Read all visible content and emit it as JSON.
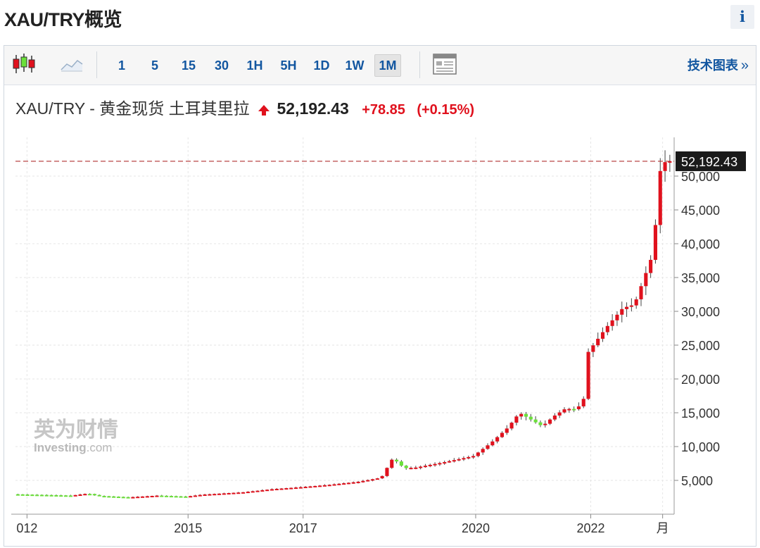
{
  "page": {
    "title": "XAU/TRY概览",
    "info_icon": "i"
  },
  "toolbar": {
    "candles_icon": "candlestick-chart-icon",
    "area_icon": "area-chart-icon",
    "timeframes": [
      "1",
      "5",
      "15",
      "30",
      "1H",
      "5H",
      "1D",
      "1W",
      "1M"
    ],
    "active_timeframe": "1M",
    "layout_icon": "chart-layout-icon",
    "tech_link": "技术图表",
    "tech_arrow": "»"
  },
  "quote": {
    "name": "XAU/TRY - 黄金现货 土耳其里拉",
    "price": "52,192.43",
    "change": "+78.85",
    "change_pct": "(+0.15%)",
    "direction": "up"
  },
  "watermark": {
    "cn": "英为财情",
    "en": "Investing",
    "en_suffix": ".com"
  },
  "colors": {
    "up": "#e0111d",
    "down": "#6be03a",
    "link": "#1256a0",
    "price_line": "#b03030"
  },
  "chart_data": {
    "type": "candlestick",
    "interval": "1M",
    "last_price": 52192.43,
    "last_price_label": "52,192.43",
    "ylim": [
      0,
      56000
    ],
    "y_ticks": [
      5000,
      10000,
      15000,
      20000,
      25000,
      30000,
      35000,
      40000,
      45000,
      50000
    ],
    "y_tick_labels": [
      "5,000",
      "10,000",
      "15,000",
      "20,000",
      "25,000",
      "30,000",
      "35,000",
      "40,000",
      "45,000",
      "50,000"
    ],
    "x_ticks": [
      {
        "t": 2012.2,
        "label": "012"
      },
      {
        "t": 2015.0,
        "label": "2015"
      },
      {
        "t": 2017.0,
        "label": "2017"
      },
      {
        "t": 2020.0,
        "label": "2020"
      },
      {
        "t": 2022.0,
        "label": "2022"
      },
      {
        "t": 2023.25,
        "label": "月"
      }
    ],
    "xlim": [
      2012.0,
      2023.45
    ],
    "anchors": [
      [
        2012.0,
        2950
      ],
      [
        2012.5,
        2850
      ],
      [
        2013.0,
        2750
      ],
      [
        2013.3,
        3050
      ],
      [
        2013.5,
        2700
      ],
      [
        2014.0,
        2500
      ],
      [
        2014.5,
        2750
      ],
      [
        2015.0,
        2600
      ],
      [
        2015.3,
        2900
      ],
      [
        2015.6,
        3050
      ],
      [
        2016.0,
        3250
      ],
      [
        2016.5,
        3700
      ],
      [
        2017.0,
        4000
      ],
      [
        2017.5,
        4350
      ],
      [
        2018.0,
        4800
      ],
      [
        2018.4,
        5400
      ],
      [
        2018.6,
        8300
      ],
      [
        2018.8,
        6800
      ],
      [
        2019.0,
        6900
      ],
      [
        2019.5,
        7700
      ],
      [
        2020.0,
        8600
      ],
      [
        2020.3,
        10500
      ],
      [
        2020.6,
        12800
      ],
      [
        2020.8,
        15000
      ],
      [
        2021.0,
        14000
      ],
      [
        2021.2,
        13000
      ],
      [
        2021.4,
        14500
      ],
      [
        2021.6,
        15600
      ],
      [
        2021.8,
        15500
      ],
      [
        2021.95,
        17500
      ],
      [
        2022.0,
        24000
      ],
      [
        2022.3,
        27500
      ],
      [
        2022.6,
        30500
      ],
      [
        2022.8,
        31000
      ],
      [
        2022.95,
        34500
      ],
      [
        2023.1,
        38000
      ],
      [
        2023.15,
        40500
      ],
      [
        2023.22,
        50000
      ],
      [
        2023.3,
        52000
      ],
      [
        2023.4,
        52192
      ]
    ]
  }
}
